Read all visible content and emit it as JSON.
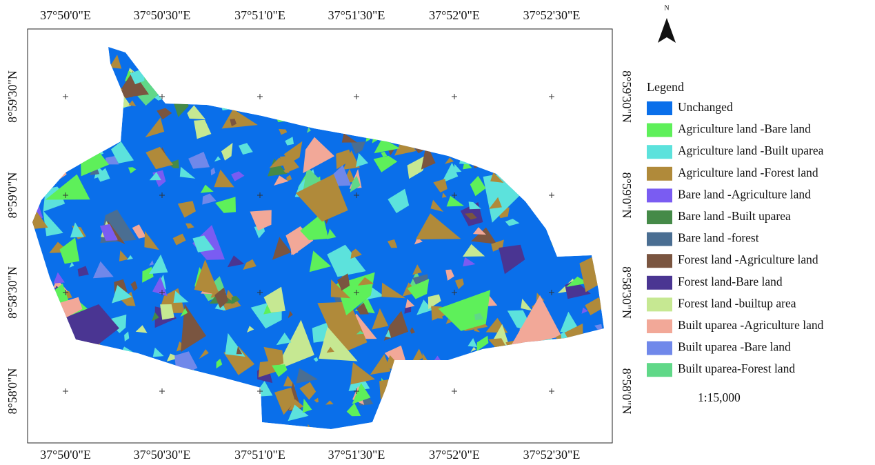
{
  "map": {
    "top_labels": [
      "37°50'0\"E",
      "37°50'30\"E",
      "37°51'0\"E",
      "37°51'30\"E",
      "37°52'0\"E",
      "37°52'30\"E"
    ],
    "bottom_labels": [
      "37°50'0\"E",
      "37°50'30\"E",
      "37°51'0\"E",
      "37°51'30\"E",
      "37°52'0\"E",
      "37°52'30\"E"
    ],
    "left_labels": [
      "8°59'30\"N",
      "8°59'0\"N",
      "8°58'30\"N",
      "8°58'0\"N"
    ],
    "right_labels": [
      "8°59'30\"N",
      "8°59'0\"N",
      "8°58'30\"N",
      "8°58'0\"N"
    ],
    "north": "N",
    "legend": {
      "title": "Legend",
      "items": [
        {
          "label": "Unchanged",
          "color": "#0a6fea"
        },
        {
          "label": "Agriculture land -Bare land",
          "color": "#5ef05a"
        },
        {
          "label": "Agriculture land -Built uparea",
          "color": "#5ce2dc"
        },
        {
          "label": "Agriculture land -Forest land",
          "color": "#b08a3a"
        },
        {
          "label": "Bare land -Agriculture land",
          "color": "#7a5cf2"
        },
        {
          "label": "Bare land -Built uparea",
          "color": "#458a48"
        },
        {
          "label": "Bare land -forest",
          "color": "#4a6e92"
        },
        {
          "label": "Forest land -Agriculture land",
          "color": "#7a5540"
        },
        {
          "label": "Forest land-Bare land",
          "color": "#4a3592"
        },
        {
          "label": "Forest land -builtup area",
          "color": "#c6e892"
        },
        {
          "label": "Built uparea -Agriculture land",
          "color": "#f2a898"
        },
        {
          "label": "Built uparea -Bare land",
          "color": "#7088ea"
        },
        {
          "label": "Built uparea-Forest land",
          "color": "#60d888"
        }
      ]
    },
    "scale": "1:15,000"
  }
}
